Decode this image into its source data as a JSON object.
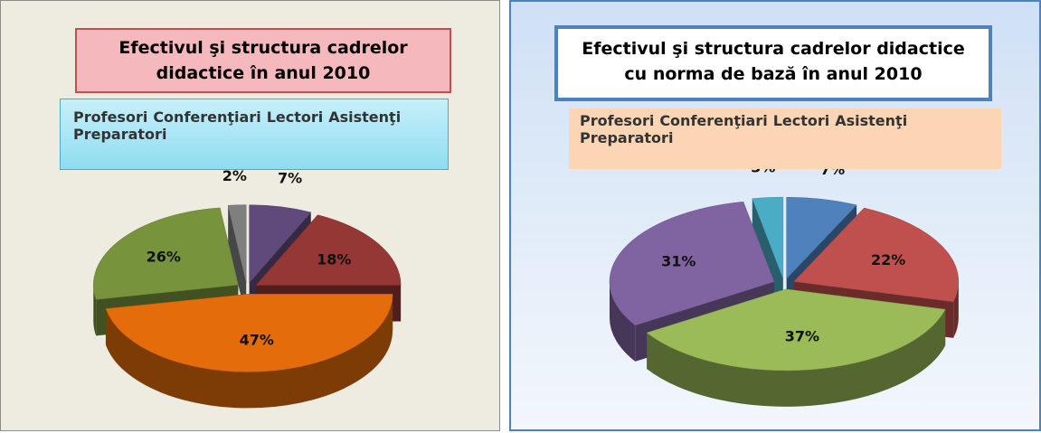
{
  "chart_data": [
    {
      "type": "pie",
      "title": "Efectivul şi structura cadrelor didactice în anul 2010",
      "categories": [
        "Profesori",
        "Conferenţiari",
        "Lectori",
        "Asistenţi",
        "Preparatori"
      ],
      "values": [
        7,
        18,
        47,
        26,
        2
      ],
      "value_labels": [
        "7%",
        "18%",
        "47%",
        "26%",
        "2%"
      ],
      "colors": [
        "#604a7b",
        "#953735",
        "#e46c0a",
        "#77933c",
        "#7f7f7f"
      ],
      "legend": "top"
    },
    {
      "type": "pie",
      "title": "Efectivul şi structura cadrelor didactice cu norma de bază în anul 2010",
      "categories": [
        "Profesori",
        "Conferenţiari",
        "Lectori",
        "Asistenţi",
        "Preparatori"
      ],
      "values": [
        7,
        22,
        37,
        31,
        3
      ],
      "value_labels": [
        "7%",
        "22%",
        "37%",
        "31%",
        "3%"
      ],
      "colors": [
        "#4f81bd",
        "#c0504d",
        "#9bbb59",
        "#8064a2",
        "#4bacc6"
      ],
      "legend": "top"
    }
  ]
}
